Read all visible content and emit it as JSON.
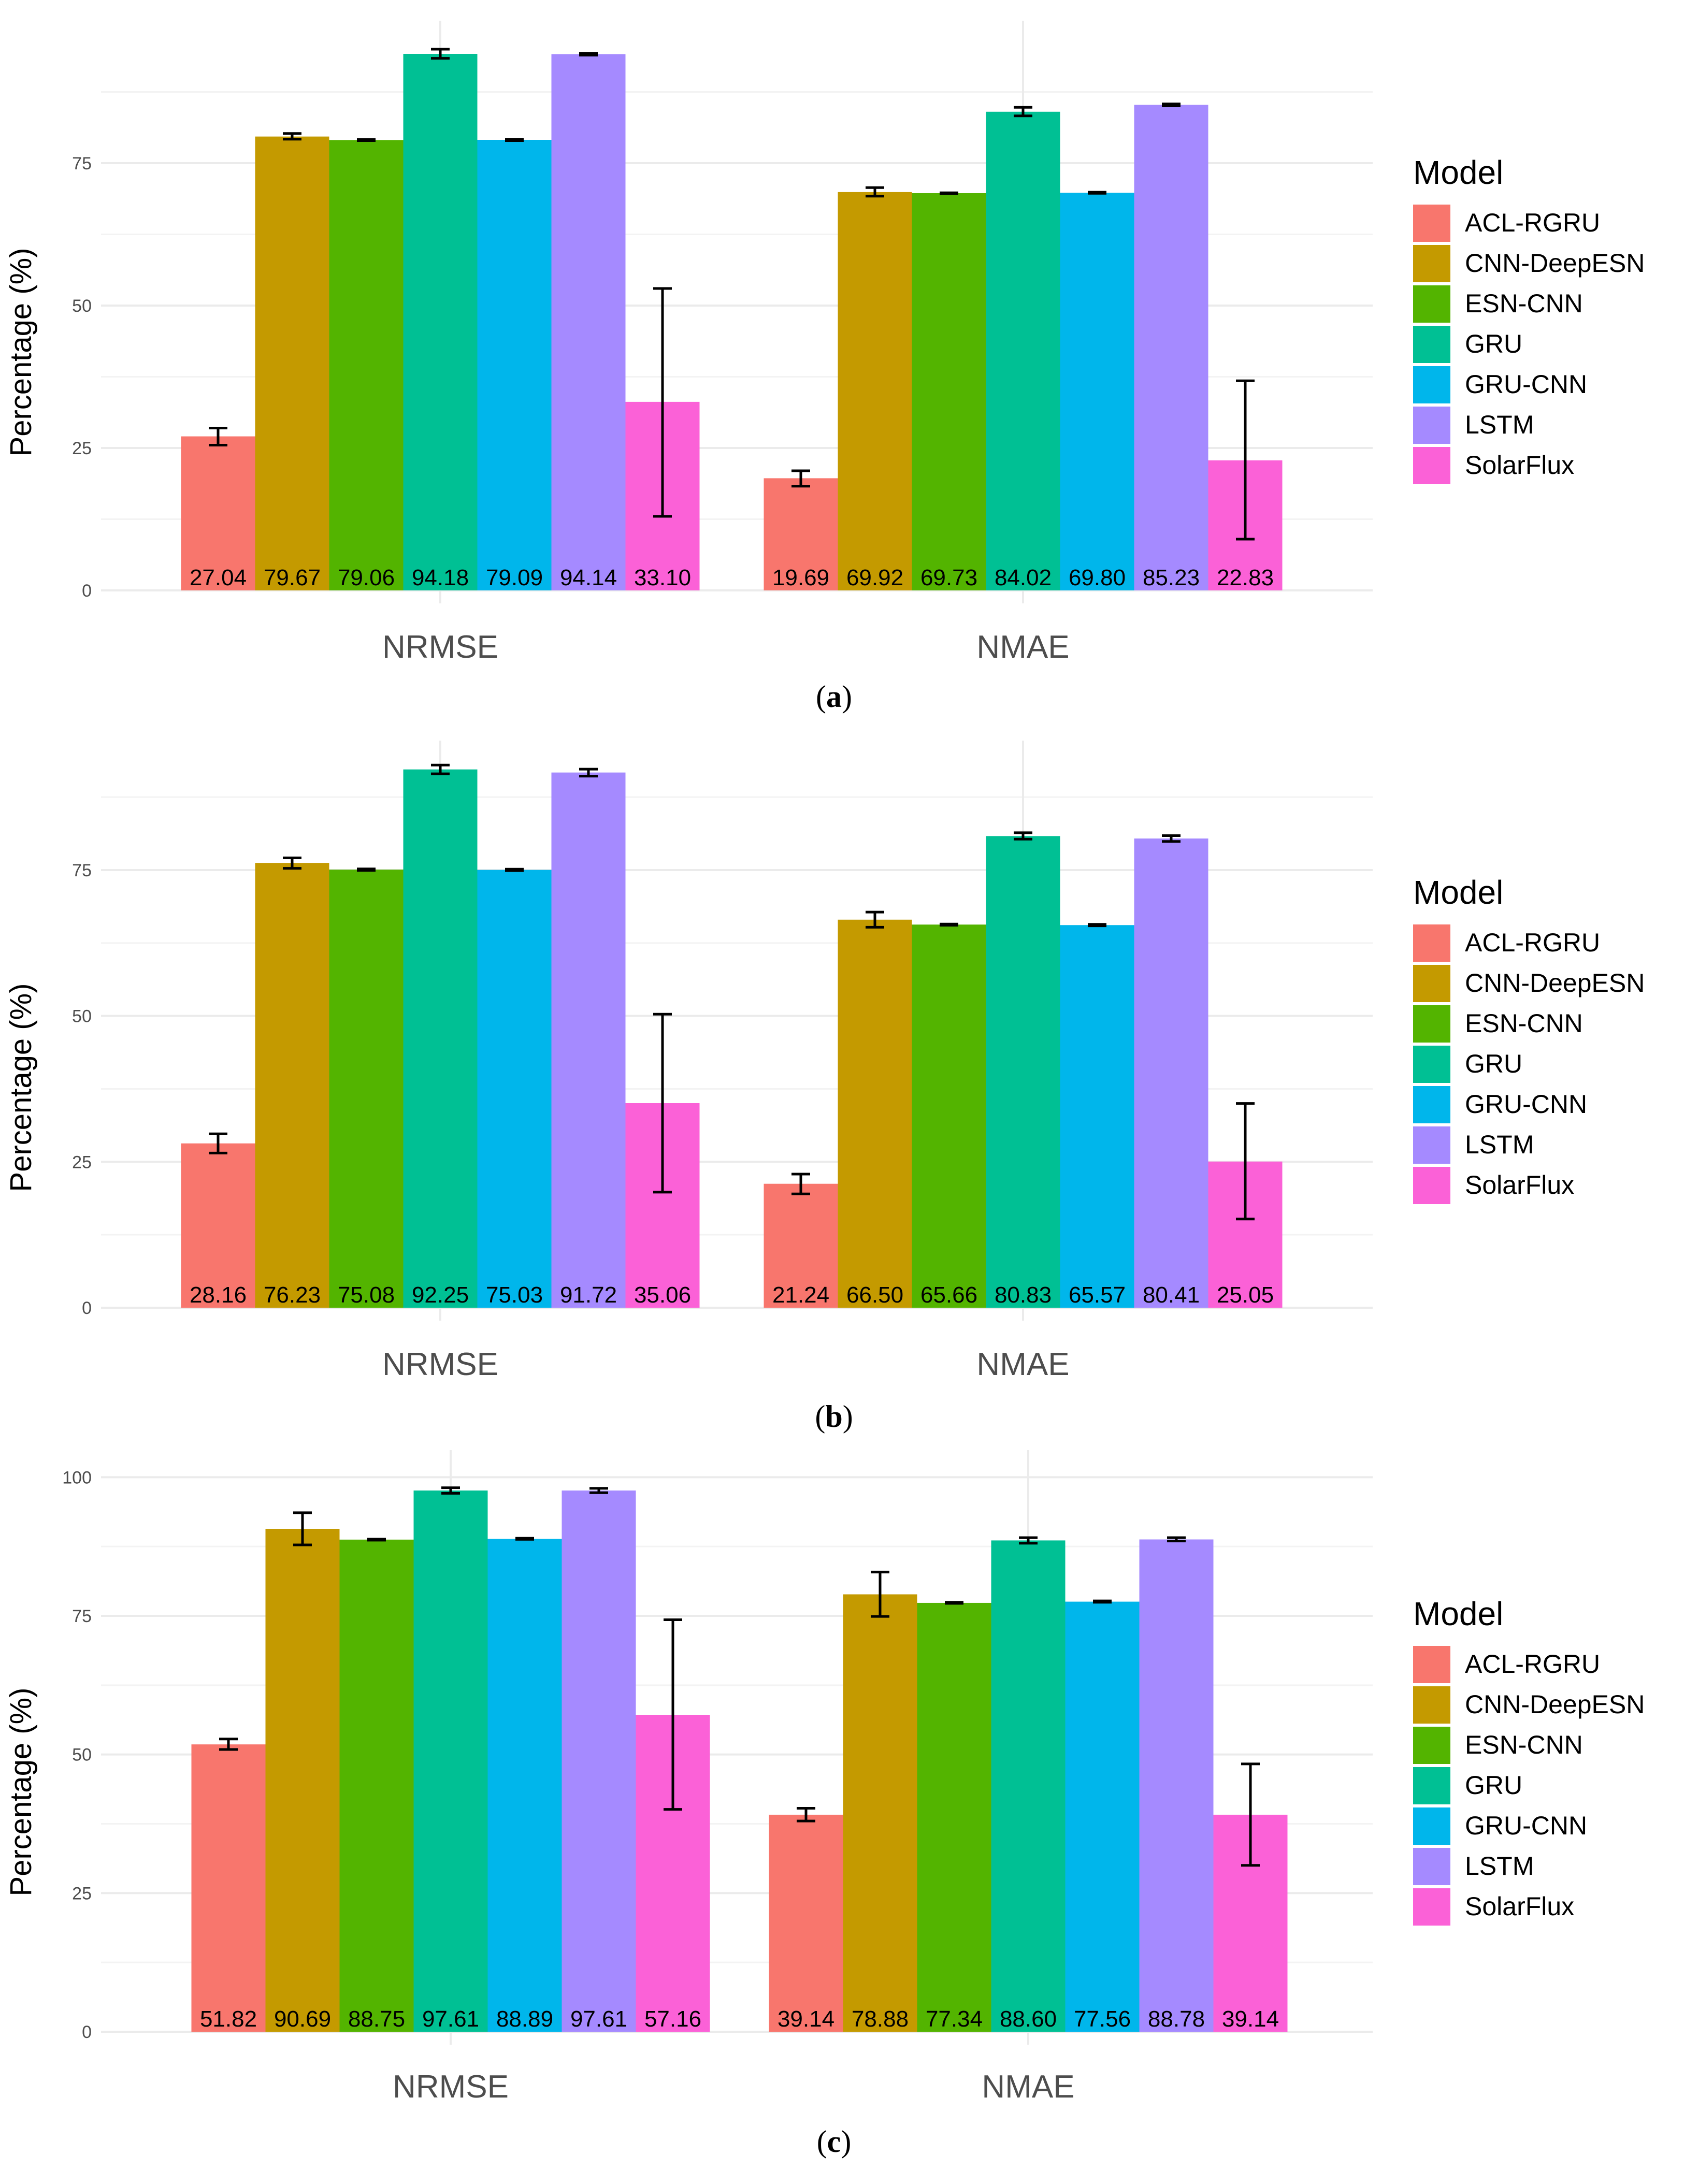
{
  "chart_data": [
    {
      "type": "bar",
      "panel": "a",
      "categories": [
        "NRMSE",
        "NMAE"
      ],
      "ylabel": "Percentage (%)",
      "ylim": [
        0,
        100
      ],
      "yticks": [
        0,
        25,
        50,
        75
      ],
      "caption_letter": "a",
      "legend_title": "Model",
      "series": [
        {
          "name": "ACL-RGRU",
          "color": "#F8766D",
          "values": [
            27.04,
            19.69
          ],
          "labels": [
            "27.04",
            "19.69"
          ],
          "err_low": [
            25.5,
            18.3
          ],
          "err_high": [
            28.5,
            21.0
          ]
        },
        {
          "name": "CNN-DeepESN",
          "color": "#C49A00",
          "values": [
            79.67,
            69.92
          ],
          "labels": [
            "79.67",
            "69.92"
          ],
          "err_low": [
            79.2,
            69.2
          ],
          "err_high": [
            80.2,
            70.7
          ]
        },
        {
          "name": "ESN-CNN",
          "color": "#53B400",
          "values": [
            79.06,
            69.73
          ],
          "labels": [
            "79.06",
            "69.73"
          ],
          "err_low": [
            78.95,
            69.65
          ],
          "err_high": [
            79.15,
            69.8
          ]
        },
        {
          "name": "GRU",
          "color": "#00C094",
          "values": [
            94.18,
            84.02
          ],
          "labels": [
            "94.18",
            "84.02"
          ],
          "err_low": [
            93.4,
            83.3
          ],
          "err_high": [
            95.0,
            84.8
          ]
        },
        {
          "name": "GRU-CNN",
          "color": "#00B6EB",
          "values": [
            79.09,
            69.8
          ],
          "labels": [
            "79.09",
            "69.80"
          ],
          "err_low": [
            78.95,
            69.7
          ],
          "err_high": [
            79.2,
            69.9
          ]
        },
        {
          "name": "LSTM",
          "color": "#A58AFF",
          "values": [
            94.14,
            85.23
          ],
          "labels": [
            "94.14",
            "85.23"
          ],
          "err_low": [
            93.95,
            85.05
          ],
          "err_high": [
            94.3,
            85.4
          ]
        },
        {
          "name": "SolarFlux",
          "color": "#FB61D7",
          "values": [
            33.1,
            22.83
          ],
          "labels": [
            "33.10",
            "22.83"
          ],
          "err_low": [
            13.0,
            9.0
          ],
          "err_high": [
            53.0,
            36.8
          ]
        }
      ]
    },
    {
      "type": "bar",
      "panel": "b",
      "categories": [
        "NRMSE",
        "NMAE"
      ],
      "ylabel": "Percentage (%)",
      "ylim": [
        0,
        100
      ],
      "yticks": [
        0,
        25,
        50,
        75
      ],
      "caption_letter": "b",
      "legend_title": "Model",
      "series": [
        {
          "name": "ACL-RGRU",
          "color": "#F8766D",
          "values": [
            28.16,
            21.24
          ],
          "labels": [
            "28.16",
            "21.24"
          ],
          "err_low": [
            26.5,
            19.5
          ],
          "err_high": [
            29.8,
            22.9
          ]
        },
        {
          "name": "CNN-DeepESN",
          "color": "#C49A00",
          "values": [
            76.23,
            66.5
          ],
          "labels": [
            "76.23",
            "66.50"
          ],
          "err_low": [
            75.3,
            65.2
          ],
          "err_high": [
            77.1,
            67.8
          ]
        },
        {
          "name": "ESN-CNN",
          "color": "#53B400",
          "values": [
            75.08,
            65.66
          ],
          "labels": [
            "75.08",
            "65.66"
          ],
          "err_low": [
            74.95,
            65.55
          ],
          "err_high": [
            75.2,
            65.75
          ]
        },
        {
          "name": "GRU",
          "color": "#00C094",
          "values": [
            92.25,
            80.83
          ],
          "labels": [
            "92.25",
            "80.83"
          ],
          "err_low": [
            91.5,
            80.3
          ],
          "err_high": [
            93.0,
            81.4
          ]
        },
        {
          "name": "GRU-CNN",
          "color": "#00B6EB",
          "values": [
            75.03,
            65.57
          ],
          "labels": [
            "75.03",
            "65.57"
          ],
          "err_low": [
            74.9,
            65.45
          ],
          "err_high": [
            75.15,
            65.7
          ]
        },
        {
          "name": "LSTM",
          "color": "#A58AFF",
          "values": [
            91.72,
            80.41
          ],
          "labels": [
            "91.72",
            "80.41"
          ],
          "err_low": [
            91.1,
            79.9
          ],
          "err_high": [
            92.3,
            80.9
          ]
        },
        {
          "name": "SolarFlux",
          "color": "#FB61D7",
          "values": [
            35.06,
            25.05
          ],
          "labels": [
            "35.06",
            "25.05"
          ],
          "err_low": [
            19.8,
            15.2
          ],
          "err_high": [
            50.3,
            35.0
          ]
        }
      ]
    },
    {
      "type": "bar",
      "panel": "c",
      "categories": [
        "NRMSE",
        "NMAE"
      ],
      "ylabel": "Percentage (%)",
      "ylim": [
        0,
        100
      ],
      "yticks": [
        0,
        25,
        50,
        75,
        100
      ],
      "caption_letter": "c",
      "legend_title": "Model",
      "series": [
        {
          "name": "ACL-RGRU",
          "color": "#F8766D",
          "values": [
            51.82,
            39.14
          ],
          "labels": [
            "51.82",
            "39.14"
          ],
          "err_low": [
            50.9,
            38.0
          ],
          "err_high": [
            52.8,
            40.3
          ]
        },
        {
          "name": "CNN-DeepESN",
          "color": "#C49A00",
          "values": [
            90.69,
            78.88
          ],
          "labels": [
            "90.69",
            "78.88"
          ],
          "err_low": [
            87.8,
            74.9
          ],
          "err_high": [
            93.6,
            82.9
          ]
        },
        {
          "name": "ESN-CNN",
          "color": "#53B400",
          "values": [
            88.75,
            77.34
          ],
          "labels": [
            "88.75",
            "77.34"
          ],
          "err_low": [
            88.65,
            77.25
          ],
          "err_high": [
            88.85,
            77.45
          ]
        },
        {
          "name": "GRU",
          "color": "#00C094",
          "values": [
            97.61,
            88.6
          ],
          "labels": [
            "97.61",
            "88.60"
          ],
          "err_low": [
            97.1,
            88.1
          ],
          "err_high": [
            98.1,
            89.1
          ]
        },
        {
          "name": "GRU-CNN",
          "color": "#00B6EB",
          "values": [
            88.89,
            77.56
          ],
          "labels": [
            "88.89",
            "77.56"
          ],
          "err_low": [
            88.8,
            77.45
          ],
          "err_high": [
            89.0,
            77.7
          ]
        },
        {
          "name": "LSTM",
          "color": "#A58AFF",
          "values": [
            97.61,
            88.78
          ],
          "labels": [
            "97.61",
            "88.78"
          ],
          "err_low": [
            97.2,
            88.5
          ],
          "err_high": [
            98.0,
            89.1
          ]
        },
        {
          "name": "SolarFlux",
          "color": "#FB61D7",
          "values": [
            57.16,
            39.14
          ],
          "labels": [
            "57.16",
            "39.14"
          ],
          "err_low": [
            40.1,
            30.0
          ],
          "err_high": [
            74.3,
            48.3
          ]
        }
      ]
    }
  ]
}
